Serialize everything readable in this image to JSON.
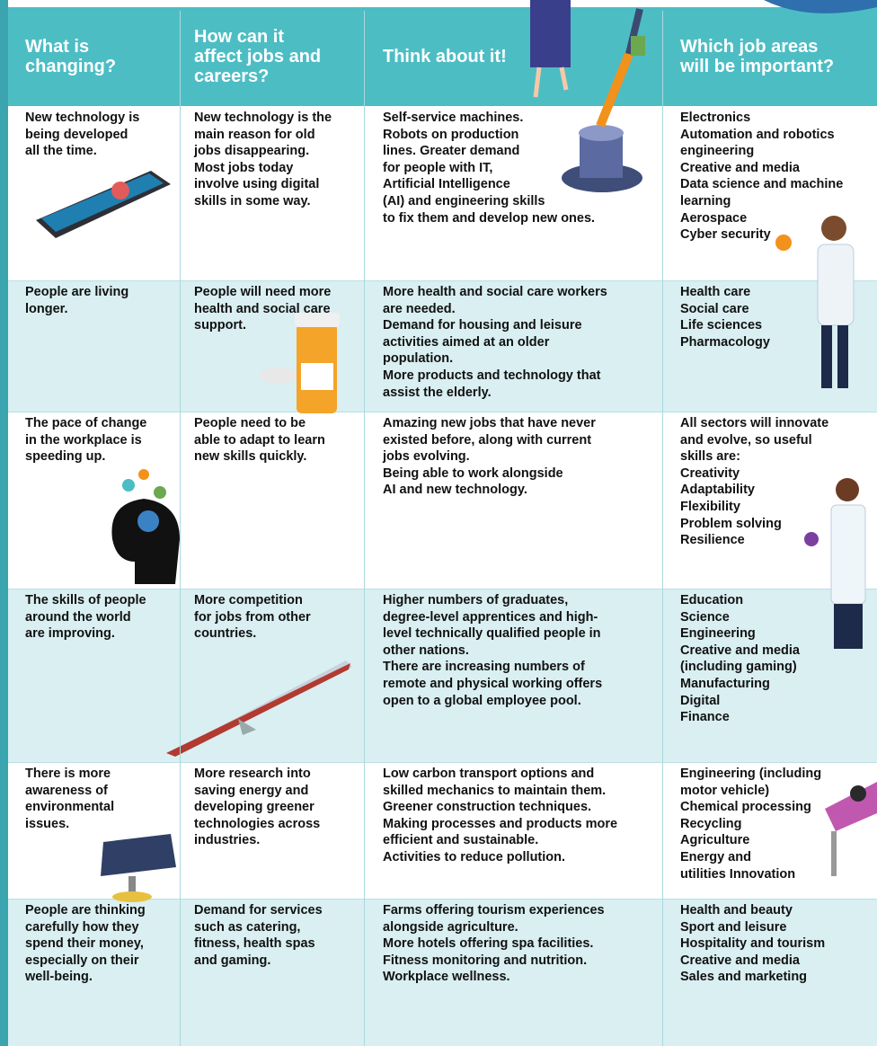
{
  "table": {
    "header": [
      [
        "What is",
        "changing?"
      ],
      [
        "How can it",
        "affect jobs and",
        "careers?"
      ],
      [
        "Think about it!"
      ],
      [
        "Which job areas",
        "will be important?"
      ]
    ],
    "rows": [
      [
        [
          "New technology is",
          "being developed",
          "all the time."
        ],
        [
          "New technology is the",
          "main reason for old",
          "jobs disappearing.",
          "Most jobs today",
          "involve using digital",
          "skills in some way."
        ],
        [
          "Self-service machines.",
          "Robots on production",
          "lines. Greater demand",
          "for people with IT,",
          "Artificial Intelligence",
          "(AI) and engineering skills",
          "to fix them and develop new ones."
        ],
        [
          "Electronics",
          "Automation and robotics",
          "engineering",
          "Creative and media",
          "Data science and machine",
          "learning",
          "Aerospace",
          "Cyber security"
        ]
      ],
      [
        [
          "People are living",
          "longer."
        ],
        [
          "People will need more",
          "health and social care",
          "support."
        ],
        [
          "More health and social care workers",
          "are needed.",
          "Demand for housing and leisure",
          "activities aimed at an older",
          "population.",
          "More products and technology that",
          "assist the elderly."
        ],
        [
          "Health care",
          "Social care",
          "Life sciences",
          "Pharmacology"
        ]
      ],
      [
        [
          "The pace of change",
          "in the workplace is",
          "speeding up."
        ],
        [
          "People need to be",
          "able to adapt to learn",
          "new skills quickly."
        ],
        [
          "Amazing new jobs that have never",
          "existed before, along with current",
          "jobs evolving.",
          "Being able to work alongside",
          "AI and new technology."
        ],
        [
          "All sectors will innovate",
          "and evolve, so useful",
          "skills are:",
          "Creativity",
          "Adaptability",
          "Flexibility",
          "Problem solving",
          "Resilience"
        ]
      ],
      [
        [
          "The skills of people",
          "around the world",
          "are improving."
        ],
        [
          "More competition",
          "for jobs from other",
          "countries."
        ],
        [
          "Higher numbers of graduates,",
          "degree-level apprentices and high-",
          "level technically qualified people in",
          "other nations.",
          "There are increasing numbers of",
          "remote and physical working offers",
          "open to a global employee pool."
        ],
        [
          "Education",
          "Science",
          "Engineering",
          "Creative and media",
          "(including gaming)",
          "Manufacturing",
          "Digital",
          "Finance"
        ]
      ],
      [
        [
          "There is more",
          "awareness of",
          "environmental",
          "issues."
        ],
        [
          "More research into",
          "saving energy and",
          "developing greener",
          "technologies across",
          "industries."
        ],
        [
          "Low carbon transport options and",
          "skilled mechanics to maintain them.",
          "Greener construction techniques.",
          "Making processes and products more",
          "efficient and sustainable.",
          "Activities to reduce pollution."
        ],
        [
          "Engineering (including",
          "motor vehicle)",
          "Chemical processing",
          "Recycling",
          "Agriculture",
          "Energy and",
          "utilities Innovation"
        ]
      ],
      [
        [
          "People are thinking",
          "carefully how they",
          "spend their money,",
          "especially on their",
          "well-being."
        ],
        [
          "Demand for services",
          "such as catering,",
          "fitness, health spas",
          "and gaming."
        ],
        [
          "Farms offering tourism experiences",
          "alongside agriculture.",
          "More hotels offering spa facilities.",
          "Fitness monitoring and nutrition.",
          "Workplace wellness."
        ],
        [
          "Health and beauty",
          "Sport and leisure",
          "Hospitality and tourism",
          "Creative and media",
          "Sales and marketing"
        ]
      ]
    ]
  }
}
